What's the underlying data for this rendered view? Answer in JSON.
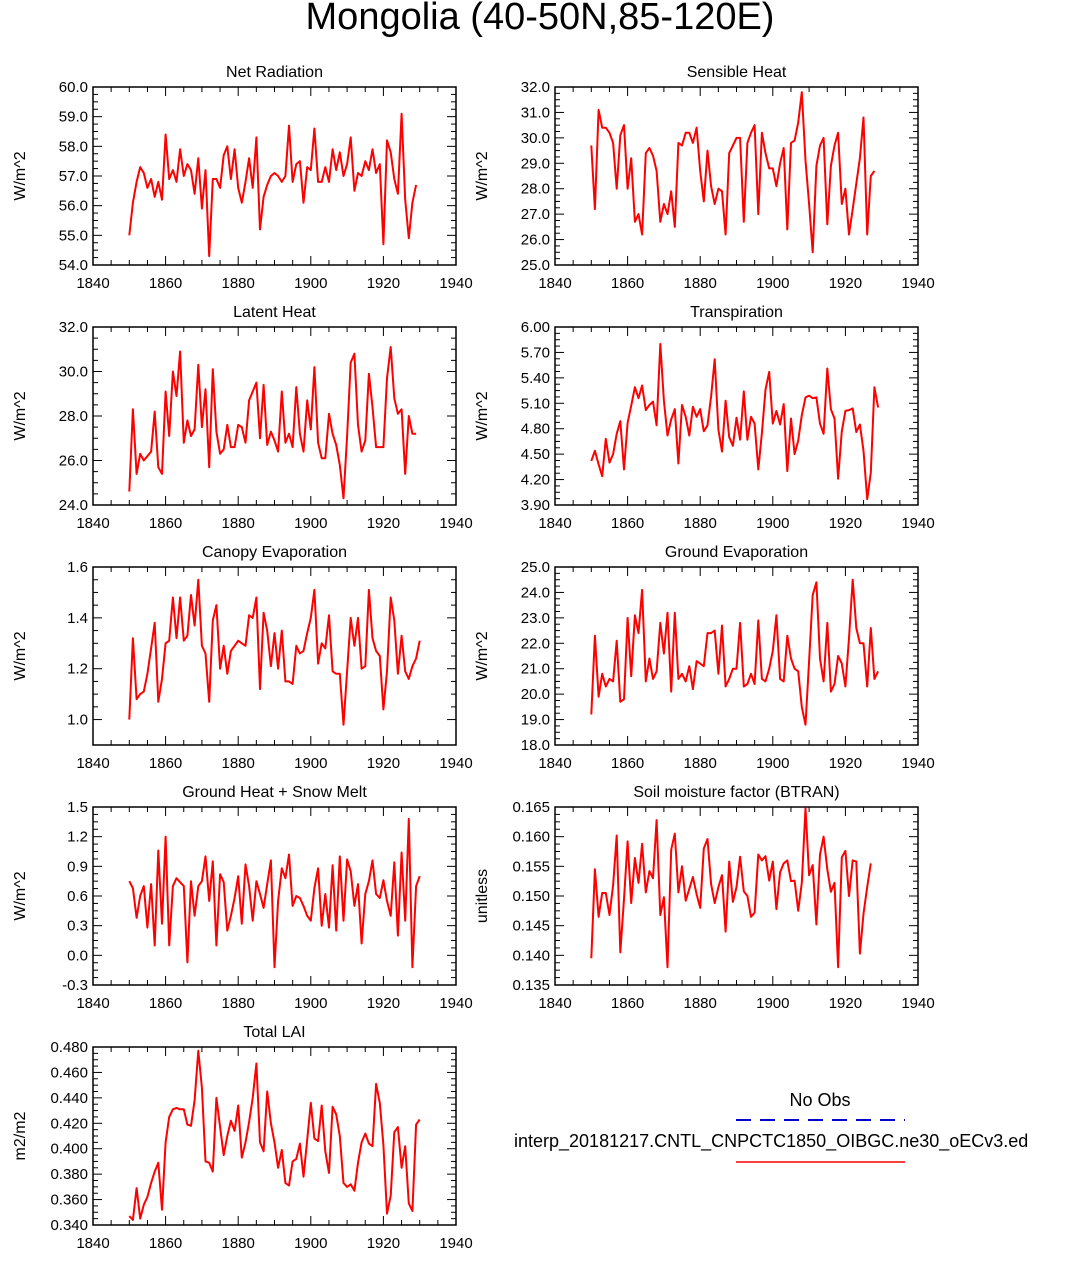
{
  "page_title": "Mongolia (40-50N,85-120E)",
  "legend": {
    "obs_label": "No Obs",
    "obs_color": "#0000cc",
    "model_label": "interp_20181217.CNTL_CNPCTC1850_OIBGC.ne30_oECv3.ed",
    "model_color": "#ff0000"
  },
  "chart_data": [
    {
      "type": "line",
      "title": "Net Radiation",
      "ylabel": "W/m^2",
      "xlim": [
        1840,
        1940
      ],
      "ylim": [
        54.0,
        60.0
      ],
      "xticks": [
        "1840",
        "1860",
        "1880",
        "1900",
        "1920",
        "1940"
      ],
      "yticks": [
        "54.0",
        "55.0",
        "56.0",
        "57.0",
        "58.0",
        "59.0",
        "60.0"
      ],
      "x_start": 1850,
      "series": [
        {
          "color": "#ff0000",
          "values": [
            55.0,
            56.1,
            56.8,
            57.3,
            57.1,
            56.6,
            56.9,
            56.3,
            56.8,
            56.2,
            58.4,
            56.9,
            57.2,
            56.8,
            57.9,
            57.0,
            57.4,
            57.2,
            56.4,
            57.6,
            55.9,
            57.2,
            54.3,
            56.9,
            56.9,
            56.6,
            57.7,
            58.0,
            56.9,
            57.9,
            56.6,
            56.1,
            56.8,
            57.6,
            56.6,
            58.3,
            55.2,
            56.3,
            56.7,
            57.0,
            57.1,
            57.0,
            56.8,
            57.0,
            58.7,
            56.8,
            57.4,
            57.5,
            56.1,
            57.3,
            57.2,
            58.6,
            56.8,
            56.8,
            57.3,
            56.8,
            57.9,
            57.2,
            57.8,
            57.0,
            57.4,
            58.3,
            56.5,
            57.1,
            57.0,
            57.5,
            57.2,
            57.9,
            57.1,
            57.4,
            54.7,
            58.2,
            57.8,
            56.9,
            56.4,
            59.1,
            56.2,
            54.9,
            56.1,
            56.7
          ]
        }
      ]
    },
    {
      "type": "line",
      "title": "Sensible Heat",
      "ylabel": "W/m^2",
      "xlim": [
        1840,
        1940
      ],
      "ylim": [
        25.0,
        32.0
      ],
      "xticks": [
        "1840",
        "1860",
        "1880",
        "1900",
        "1920",
        "1940"
      ],
      "yticks": [
        "25.0",
        "26.0",
        "27.0",
        "28.0",
        "29.0",
        "30.0",
        "31.0",
        "32.0"
      ],
      "x_start": 1850,
      "series": [
        {
          "color": "#ff0000",
          "values": [
            29.7,
            27.2,
            31.1,
            30.4,
            30.4,
            30.2,
            29.8,
            28.0,
            30.1,
            30.5,
            28.0,
            29.2,
            26.7,
            27.0,
            26.2,
            29.4,
            29.6,
            29.3,
            28.7,
            26.7,
            27.4,
            27.0,
            27.9,
            26.5,
            29.8,
            29.7,
            30.2,
            30.2,
            29.8,
            30.4,
            28.7,
            27.5,
            29.5,
            28.1,
            27.4,
            28.0,
            27.9,
            26.2,
            29.4,
            29.7,
            30.0,
            30.0,
            26.7,
            29.8,
            30.2,
            30.5,
            27.0,
            30.2,
            29.4,
            28.8,
            28.8,
            28.1,
            29.0,
            29.6,
            26.4,
            29.8,
            29.9,
            30.6,
            31.8,
            29.1,
            27.4,
            25.5,
            28.9,
            29.7,
            30.0,
            26.6,
            28.9,
            29.7,
            30.2,
            27.4,
            28.0,
            26.2,
            27.2,
            28.2,
            29.2,
            30.8,
            26.2,
            28.5,
            28.7
          ]
        }
      ]
    },
    {
      "type": "line",
      "title": "Latent Heat",
      "ylabel": "W/m^2",
      "xlim": [
        1840,
        1940
      ],
      "ylim": [
        24.0,
        32.0
      ],
      "xticks": [
        "1840",
        "1860",
        "1880",
        "1900",
        "1920",
        "1940"
      ],
      "yticks": [
        "24.0",
        "26.0",
        "28.0",
        "30.0",
        "32.0"
      ],
      "x_start": 1850,
      "series": [
        {
          "color": "#ff0000",
          "values": [
            24.6,
            28.3,
            25.4,
            26.3,
            26.0,
            26.2,
            26.4,
            28.2,
            25.7,
            25.4,
            29.1,
            27.1,
            30.0,
            28.9,
            30.9,
            26.8,
            27.8,
            27.1,
            27.4,
            30.3,
            27.5,
            29.2,
            25.7,
            30.1,
            27.3,
            26.3,
            26.5,
            27.6,
            26.6,
            26.6,
            27.6,
            27.5,
            26.8,
            28.7,
            29.1,
            29.5,
            27.0,
            29.4,
            26.7,
            27.3,
            26.9,
            26.4,
            29.1,
            26.8,
            27.2,
            26.6,
            29.3,
            27.2,
            26.4,
            28.7,
            27.4,
            30.2,
            26.8,
            26.1,
            26.1,
            28.1,
            27.2,
            26.7,
            25.8,
            24.3,
            27.1,
            30.4,
            30.8,
            27.6,
            26.4,
            26.9,
            29.9,
            28.4,
            26.6,
            26.6,
            26.6,
            29.7,
            31.1,
            28.8,
            28.1,
            28.3,
            25.4,
            28.0,
            27.2,
            27.2
          ]
        }
      ]
    },
    {
      "type": "line",
      "title": "Transpiration",
      "ylabel": "W/m^2",
      "xlim": [
        1840,
        1940
      ],
      "ylim": [
        3.9,
        6.0
      ],
      "xticks": [
        "1840",
        "1860",
        "1880",
        "1900",
        "1920",
        "1940"
      ],
      "yticks": [
        "3.90",
        "4.20",
        "4.50",
        "4.80",
        "5.10",
        "5.40",
        "5.70",
        "6.00"
      ],
      "x_start": 1850,
      "series": [
        {
          "color": "#ff0000",
          "values": [
            4.42,
            4.54,
            4.38,
            4.24,
            4.68,
            4.4,
            4.5,
            4.74,
            4.89,
            4.32,
            4.87,
            5.07,
            5.29,
            5.16,
            5.31,
            5.02,
            5.08,
            5.12,
            4.84,
            5.8,
            5.13,
            4.72,
            4.91,
            5.03,
            4.39,
            5.08,
            4.94,
            4.72,
            5.06,
            4.94,
            5.03,
            4.77,
            4.84,
            5.18,
            5.62,
            4.79,
            4.53,
            5.13,
            4.7,
            4.6,
            4.93,
            4.67,
            5.24,
            4.67,
            4.94,
            4.86,
            4.32,
            4.75,
            5.26,
            5.47,
            4.86,
            5.01,
            4.85,
            5.09,
            4.3,
            4.92,
            4.5,
            4.66,
            4.96,
            5.17,
            5.19,
            5.16,
            5.17,
            4.86,
            4.74,
            5.51,
            5.03,
            4.92,
            4.21,
            4.77,
            5.01,
            5.02,
            5.04,
            4.76,
            4.85,
            4.54,
            3.97,
            4.28,
            5.29,
            5.05
          ]
        }
      ]
    },
    {
      "type": "line",
      "title": "Canopy Evaporation",
      "ylabel": "W/m^2",
      "xlim": [
        1840,
        1940
      ],
      "ylim": [
        0.9,
        1.6
      ],
      "xticks": [
        "1840",
        "1860",
        "1880",
        "1900",
        "1920",
        "1940"
      ],
      "yticks": [
        "1.0",
        "1.2",
        "1.4",
        "1.6"
      ],
      "x_start": 1850,
      "series": [
        {
          "color": "#ff0000",
          "values": [
            1.0,
            1.32,
            1.08,
            1.1,
            1.11,
            1.18,
            1.28,
            1.38,
            1.07,
            1.16,
            1.3,
            1.31,
            1.48,
            1.32,
            1.48,
            1.31,
            1.33,
            1.49,
            1.37,
            1.55,
            1.29,
            1.26,
            1.07,
            1.39,
            1.45,
            1.2,
            1.29,
            1.18,
            1.27,
            1.29,
            1.31,
            1.3,
            1.29,
            1.41,
            1.4,
            1.48,
            1.12,
            1.42,
            1.35,
            1.21,
            1.34,
            1.2,
            1.35,
            1.15,
            1.15,
            1.14,
            1.29,
            1.26,
            1.27,
            1.34,
            1.4,
            1.51,
            1.22,
            1.3,
            1.28,
            1.41,
            1.19,
            1.18,
            1.18,
            0.98,
            1.19,
            1.4,
            1.29,
            1.4,
            1.2,
            1.21,
            1.51,
            1.32,
            1.27,
            1.25,
            1.04,
            1.19,
            1.48,
            1.39,
            1.18,
            1.33,
            1.19,
            1.16,
            1.21,
            1.24,
            1.31
          ]
        }
      ]
    },
    {
      "type": "line",
      "title": "Ground Evaporation",
      "ylabel": "W/m^2",
      "xlim": [
        1840,
        1940
      ],
      "ylim": [
        18.0,
        25.0
      ],
      "xticks": [
        "1840",
        "1860",
        "1880",
        "1900",
        "1920",
        "1940"
      ],
      "yticks": [
        "18.0",
        "19.0",
        "20.0",
        "21.0",
        "22.0",
        "23.0",
        "24.0",
        "25.0"
      ],
      "x_start": 1850,
      "series": [
        {
          "color": "#ff0000",
          "values": [
            19.2,
            22.3,
            19.9,
            20.8,
            20.3,
            20.6,
            20.5,
            22.1,
            19.7,
            19.8,
            23.0,
            20.7,
            23.1,
            22.4,
            24.1,
            20.5,
            21.4,
            20.6,
            20.9,
            22.8,
            21.6,
            23.2,
            20.1,
            23.2,
            20.6,
            20.8,
            20.5,
            21.1,
            20.2,
            21.3,
            21.2,
            21.1,
            22.4,
            22.4,
            22.5,
            20.8,
            22.7,
            20.3,
            20.6,
            21.0,
            21.0,
            22.8,
            20.3,
            20.4,
            20.8,
            20.4,
            22.9,
            20.6,
            20.5,
            21.0,
            21.7,
            23.1,
            20.6,
            20.5,
            22.3,
            21.4,
            21.0,
            20.9,
            19.5,
            18.8,
            21.3,
            23.9,
            24.4,
            21.4,
            20.5,
            22.8,
            20.1,
            20.4,
            21.5,
            21.2,
            20.3,
            22.2,
            24.5,
            22.6,
            22.0,
            22.0,
            20.3,
            22.6,
            20.6,
            20.9
          ]
        }
      ]
    },
    {
      "type": "line",
      "title": "Ground Heat + Snow Melt",
      "ylabel": "W/m^2",
      "xlim": [
        1840,
        1940
      ],
      "ylim": [
        -0.3,
        1.5
      ],
      "xticks": [
        "1840",
        "1860",
        "1880",
        "1900",
        "1920",
        "1940"
      ],
      "yticks": [
        "-0.3",
        "0.0",
        "0.3",
        "0.6",
        "0.9",
        "1.2",
        "1.5"
      ],
      "x_start": 1850,
      "series": [
        {
          "color": "#ff0000",
          "values": [
            0.75,
            0.68,
            0.38,
            0.6,
            0.7,
            0.28,
            0.72,
            0.1,
            1.06,
            0.32,
            1.2,
            0.1,
            0.7,
            0.78,
            0.74,
            0.7,
            -0.07,
            0.75,
            0.4,
            0.7,
            0.75,
            1.0,
            0.55,
            0.95,
            0.1,
            0.82,
            0.74,
            0.25,
            0.4,
            0.58,
            0.8,
            0.32,
            0.92,
            0.7,
            0.35,
            0.75,
            0.62,
            0.48,
            0.72,
            0.96,
            -0.12,
            0.55,
            0.88,
            0.78,
            1.02,
            0.5,
            0.6,
            0.58,
            0.5,
            0.4,
            0.35,
            0.68,
            0.88,
            0.3,
            0.62,
            0.28,
            0.91,
            0.25,
            1.0,
            0.35,
            0.97,
            0.85,
            0.5,
            0.72,
            0.12,
            0.62,
            0.75,
            0.96,
            0.62,
            0.58,
            0.76,
            0.55,
            0.4,
            0.94,
            0.2,
            1.04,
            0.35,
            1.38,
            -0.12,
            0.7,
            0.8
          ]
        }
      ]
    },
    {
      "type": "line",
      "title": "Soil moisture factor (BTRAN)",
      "ylabel": "unitless",
      "xlim": [
        1840,
        1940
      ],
      "ylim": [
        0.135,
        0.165
      ],
      "xticks": [
        "1840",
        "1860",
        "1880",
        "1900",
        "1920",
        "1940"
      ],
      "yticks": [
        "0.135",
        "0.140",
        "0.145",
        "0.150",
        "0.155",
        "0.160",
        "0.165"
      ],
      "x_start": 1850,
      "series": [
        {
          "color": "#ff0000",
          "values": [
            0.1395,
            0.1545,
            0.1465,
            0.1505,
            0.1505,
            0.1468,
            0.1518,
            0.1602,
            0.1405,
            0.1495,
            0.1592,
            0.1488,
            0.1564,
            0.1522,
            0.1588,
            0.1506,
            0.1542,
            0.153,
            0.1628,
            0.1468,
            0.1498,
            0.138,
            0.1578,
            0.1605,
            0.1506,
            0.155,
            0.1492,
            0.1512,
            0.1532,
            0.1503,
            0.148,
            0.158,
            0.1596,
            0.152,
            0.1488,
            0.1515,
            0.1535,
            0.144,
            0.1558,
            0.149,
            0.1515,
            0.1566,
            0.1508,
            0.15,
            0.1465,
            0.1472,
            0.157,
            0.156,
            0.1567,
            0.1526,
            0.1558,
            0.1478,
            0.154,
            0.1555,
            0.156,
            0.1525,
            0.1526,
            0.1475,
            0.1522,
            0.1648,
            0.1535,
            0.1552,
            0.1452,
            0.157,
            0.16,
            0.1545,
            0.1507,
            0.1522,
            0.138,
            0.1565,
            0.1576,
            0.15,
            0.156,
            0.1558,
            0.1403,
            0.147,
            0.1515,
            0.1555
          ]
        }
      ]
    },
    {
      "type": "line",
      "title": "Total LAI",
      "ylabel": "m2/m2",
      "xlim": [
        1840,
        1940
      ],
      "ylim": [
        0.34,
        0.48
      ],
      "xticks": [
        "1840",
        "1860",
        "1880",
        "1900",
        "1920",
        "1940"
      ],
      "yticks": [
        "0.340",
        "0.360",
        "0.380",
        "0.400",
        "0.420",
        "0.440",
        "0.460",
        "0.480"
      ],
      "x_start": 1850,
      "series": [
        {
          "color": "#ff0000",
          "values": [
            0.347,
            0.344,
            0.369,
            0.345,
            0.356,
            0.362,
            0.373,
            0.382,
            0.389,
            0.352,
            0.405,
            0.425,
            0.431,
            0.432,
            0.431,
            0.431,
            0.419,
            0.418,
            0.438,
            0.477,
            0.448,
            0.39,
            0.389,
            0.382,
            0.44,
            0.417,
            0.395,
            0.41,
            0.422,
            0.414,
            0.434,
            0.393,
            0.405,
            0.421,
            0.44,
            0.467,
            0.405,
            0.398,
            0.445,
            0.42,
            0.405,
            0.385,
            0.399,
            0.373,
            0.371,
            0.39,
            0.392,
            0.404,
            0.378,
            0.407,
            0.436,
            0.408,
            0.406,
            0.434,
            0.398,
            0.381,
            0.433,
            0.427,
            0.41,
            0.373,
            0.37,
            0.372,
            0.367,
            0.389,
            0.405,
            0.412,
            0.404,
            0.402,
            0.451,
            0.436,
            0.403,
            0.349,
            0.363,
            0.413,
            0.417,
            0.385,
            0.402,
            0.357,
            0.351,
            0.419,
            0.423
          ]
        }
      ]
    }
  ]
}
